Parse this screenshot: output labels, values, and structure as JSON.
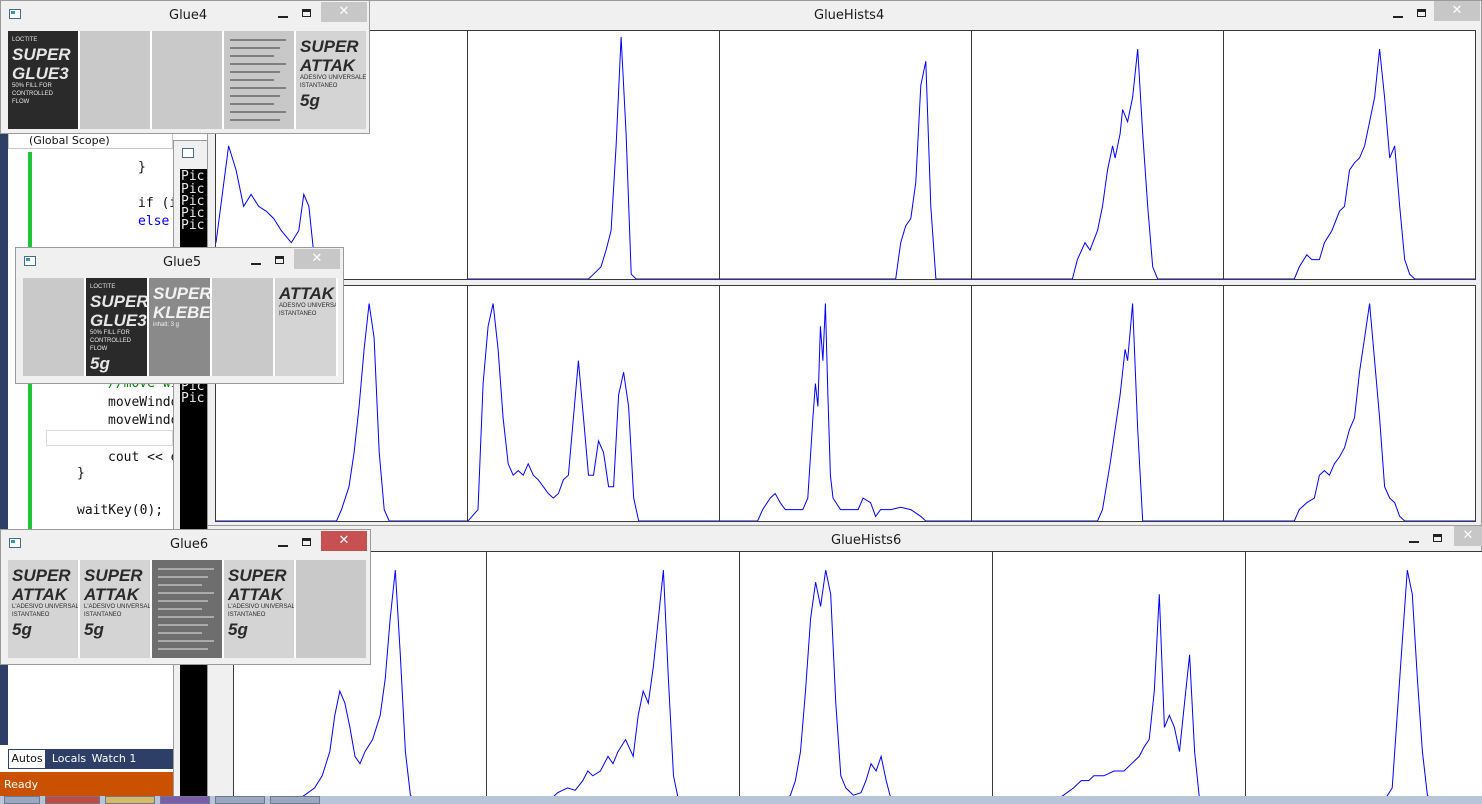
{
  "ide": {
    "scope_label": "(Global Scope)",
    "code_lines": [
      "}",
      "if (i",
      "else",
      "//move wi",
      "moveWindo",
      "moveWindo",
      "cout << e",
      "}",
      "waitKey(0);"
    ],
    "console_lines": [
      "Pic",
      "Pic",
      "Pic",
      "Pic",
      "Pic",
      "Pic",
      "Pic"
    ],
    "tabs": {
      "autos": "Autos",
      "locals": "Locals",
      "watch": "Watch 1"
    },
    "status": "Ready",
    "colors": {
      "status_bar": "#ca5100",
      "debug_tab_bg": "#2d3f66",
      "change_margin": "#1fc43b"
    }
  },
  "windows": {
    "glue4": {
      "title": "Glue4",
      "minimize_icon": "minimize-icon",
      "maximize_icon": "maximize-icon",
      "close_label": "✕"
    },
    "glue5": {
      "title": "Glue5",
      "close_label": "✕"
    },
    "glue6": {
      "title": "Glue6",
      "close_label": "✕"
    },
    "gluehists4": {
      "title": "GlueHists4",
      "close_label": "✕"
    },
    "gluehists6": {
      "title": "GlueHists6",
      "close_label": "✕"
    }
  },
  "thumbnails": {
    "glue4": [
      {
        "lines": [
          "LOCTITE",
          "SUPER",
          "GLUE3",
          "50% FILL FOR",
          "CONTROLLED",
          "FLOW"
        ],
        "style": "dark-label"
      },
      {
        "lines": [],
        "style": "blank"
      },
      {
        "lines": [],
        "style": "blank"
      },
      {
        "lines": [],
        "style": "text-page"
      },
      {
        "lines": [
          "SUPER",
          "ATTAK",
          "ADESIVO UNIVERSALE",
          "ISTANTANEO",
          "5g"
        ],
        "style": "light-label"
      }
    ],
    "glue5": [
      {
        "lines": [],
        "style": "blank"
      },
      {
        "lines": [
          "LOCTITE",
          "SUPER",
          "GLUE3",
          "50% FILL FOR",
          "CONTROLLED",
          "FLOW",
          "5g"
        ],
        "style": "dark-label"
      },
      {
        "lines": [
          "SUPER",
          "KLEBER",
          "inhalt: 3 g"
        ],
        "style": "gray-label"
      },
      {
        "lines": [],
        "style": "blank"
      },
      {
        "lines": [
          "ATTAK",
          "ADESIVO UNIVERSALE",
          "ISTANTANEO"
        ],
        "style": "light-label"
      }
    ],
    "glue6": [
      {
        "lines": [
          "SUPER",
          "ATTAK",
          "L'ADESIVO UNIVERSALE",
          "ISTANTANEO",
          "5g"
        ],
        "style": "light-label"
      },
      {
        "lines": [
          "SUPER",
          "ATTAK",
          "L'ADESIVO UNIVERSALE",
          "ISTANTANEO",
          "5g"
        ],
        "style": "light-label"
      },
      {
        "lines": [],
        "style": "gray-text"
      },
      {
        "lines": [
          "SUPER",
          "ATTAK",
          "L'ADESIVO UNIVERSALE",
          "ISTANTANEO",
          "5g"
        ],
        "style": "light-label"
      },
      {
        "lines": [],
        "style": "blank"
      }
    ]
  },
  "histograms": {
    "line_color": "#0000ff",
    "bins": 100,
    "gluehists4_row1": [
      [
        [
          0,
          0.15
        ],
        [
          5,
          0.55
        ],
        [
          8,
          0.45
        ],
        [
          11,
          0.3
        ],
        [
          14,
          0.35
        ],
        [
          17,
          0.3
        ],
        [
          20,
          0.28
        ],
        [
          23,
          0.25
        ],
        [
          26,
          0.2
        ],
        [
          30,
          0.15
        ],
        [
          33,
          0.2
        ],
        [
          35,
          0.35
        ],
        [
          37,
          0.3
        ],
        [
          39,
          0.1
        ],
        [
          41,
          0.02
        ],
        [
          43,
          0
        ]
      ],
      [
        [
          0,
          0
        ],
        [
          48,
          0
        ],
        [
          50,
          0.02
        ],
        [
          53,
          0.05
        ],
        [
          55,
          0.12
        ],
        [
          57,
          0.2
        ],
        [
          59,
          0.55
        ],
        [
          61,
          1.0
        ],
        [
          63,
          0.6
        ],
        [
          65,
          0.02
        ],
        [
          67,
          0
        ],
        [
          100,
          0
        ]
      ],
      [
        [
          0,
          0
        ],
        [
          70,
          0
        ],
        [
          72,
          0.15
        ],
        [
          74,
          0.22
        ],
        [
          76,
          0.25
        ],
        [
          78,
          0.4
        ],
        [
          80,
          0.8
        ],
        [
          82,
          0.9
        ],
        [
          84,
          0.3
        ],
        [
          86,
          0
        ],
        [
          100,
          0
        ]
      ],
      [
        [
          0,
          0
        ],
        [
          40,
          0
        ],
        [
          42,
          0.08
        ],
        [
          45,
          0.15
        ],
        [
          47,
          0.12
        ],
        [
          50,
          0.2
        ],
        [
          52,
          0.3
        ],
        [
          54,
          0.45
        ],
        [
          56,
          0.55
        ],
        [
          57,
          0.5
        ],
        [
          59,
          0.6
        ],
        [
          60,
          0.7
        ],
        [
          62,
          0.65
        ],
        [
          64,
          0.75
        ],
        [
          66,
          0.95
        ],
        [
          68,
          0.6
        ],
        [
          70,
          0.3
        ],
        [
          72,
          0.05
        ],
        [
          74,
          0
        ],
        [
          100,
          0
        ]
      ],
      [
        [
          0,
          0
        ],
        [
          28,
          0
        ],
        [
          30,
          0.05
        ],
        [
          33,
          0.1
        ],
        [
          35,
          0.08
        ],
        [
          38,
          0.08
        ],
        [
          40,
          0.15
        ],
        [
          43,
          0.2
        ],
        [
          46,
          0.28
        ],
        [
          48,
          0.3
        ],
        [
          50,
          0.45
        ],
        [
          52,
          0.48
        ],
        [
          54,
          0.5
        ],
        [
          56,
          0.55
        ],
        [
          58,
          0.65
        ],
        [
          60,
          0.75
        ],
        [
          62,
          0.95
        ],
        [
          64,
          0.75
        ],
        [
          66,
          0.5
        ],
        [
          68,
          0.55
        ],
        [
          70,
          0.3
        ],
        [
          72,
          0.08
        ],
        [
          74,
          0.02
        ],
        [
          76,
          0
        ],
        [
          100,
          0
        ]
      ]
    ],
    "gluehists4_row2": [
      [
        [
          0,
          0
        ],
        [
          48,
          0
        ],
        [
          50,
          0.05
        ],
        [
          53,
          0.15
        ],
        [
          55,
          0.3
        ],
        [
          57,
          0.5
        ],
        [
          59,
          0.75
        ],
        [
          61,
          0.95
        ],
        [
          63,
          0.8
        ],
        [
          65,
          0.3
        ],
        [
          67,
          0.05
        ],
        [
          69,
          0
        ],
        [
          100,
          0
        ]
      ],
      [
        [
          0,
          0
        ],
        [
          4,
          0.05
        ],
        [
          6,
          0.6
        ],
        [
          8,
          0.85
        ],
        [
          10,
          0.95
        ],
        [
          12,
          0.75
        ],
        [
          14,
          0.45
        ],
        [
          16,
          0.25
        ],
        [
          18,
          0.2
        ],
        [
          20,
          0.22
        ],
        [
          22,
          0.2
        ],
        [
          24,
          0.25
        ],
        [
          26,
          0.2
        ],
        [
          28,
          0.18
        ],
        [
          30,
          0.15
        ],
        [
          32,
          0.12
        ],
        [
          34,
          0.1
        ],
        [
          36,
          0.12
        ],
        [
          38,
          0.18
        ],
        [
          40,
          0.2
        ],
        [
          44,
          0.7
        ],
        [
          46,
          0.45
        ],
        [
          48,
          0.2
        ],
        [
          50,
          0.2
        ],
        [
          52,
          0.35
        ],
        [
          54,
          0.3
        ],
        [
          56,
          0.15
        ],
        [
          58,
          0.15
        ],
        [
          60,
          0.55
        ],
        [
          62,
          0.65
        ],
        [
          64,
          0.5
        ],
        [
          66,
          0.1
        ],
        [
          68,
          0
        ],
        [
          100,
          0
        ]
      ],
      [
        [
          0,
          0
        ],
        [
          15,
          0
        ],
        [
          17,
          0.05
        ],
        [
          20,
          0.1
        ],
        [
          22,
          0.12
        ],
        [
          24,
          0.08
        ],
        [
          26,
          0.05
        ],
        [
          30,
          0.05
        ],
        [
          33,
          0.05
        ],
        [
          35,
          0.1
        ],
        [
          37,
          0.45
        ],
        [
          38,
          0.6
        ],
        [
          39,
          0.5
        ],
        [
          40,
          0.85
        ],
        [
          41,
          0.7
        ],
        [
          42,
          0.95
        ],
        [
          43,
          0.55
        ],
        [
          44,
          0.2
        ],
        [
          45,
          0.1
        ],
        [
          48,
          0.05
        ],
        [
          52,
          0.05
        ],
        [
          55,
          0.05
        ],
        [
          57,
          0.1
        ],
        [
          60,
          0.08
        ],
        [
          62,
          0.02
        ],
        [
          64,
          0.05
        ],
        [
          68,
          0.05
        ],
        [
          72,
          0.06
        ],
        [
          76,
          0.05
        ],
        [
          80,
          0.02
        ],
        [
          82,
          0
        ],
        [
          100,
          0
        ]
      ],
      [
        [
          0,
          0
        ],
        [
          50,
          0
        ],
        [
          52,
          0.05
        ],
        [
          55,
          0.25
        ],
        [
          57,
          0.4
        ],
        [
          59,
          0.55
        ],
        [
          61,
          0.75
        ],
        [
          62,
          0.7
        ],
        [
          64,
          0.95
        ],
        [
          66,
          0.4
        ],
        [
          68,
          0
        ],
        [
          100,
          0
        ]
      ],
      [
        [
          0,
          0
        ],
        [
          28,
          0
        ],
        [
          30,
          0.05
        ],
        [
          33,
          0.08
        ],
        [
          36,
          0.1
        ],
        [
          38,
          0.2
        ],
        [
          40,
          0.22
        ],
        [
          42,
          0.2
        ],
        [
          44,
          0.25
        ],
        [
          46,
          0.28
        ],
        [
          48,
          0.32
        ],
        [
          50,
          0.4
        ],
        [
          52,
          0.45
        ],
        [
          54,
          0.65
        ],
        [
          56,
          0.8
        ],
        [
          58,
          0.95
        ],
        [
          60,
          0.7
        ],
        [
          62,
          0.45
        ],
        [
          64,
          0.15
        ],
        [
          66,
          0.1
        ],
        [
          68,
          0.08
        ],
        [
          70,
          0.02
        ],
        [
          72,
          0
        ],
        [
          100,
          0
        ]
      ]
    ],
    "gluehists6_row": [
      [
        [
          0,
          0
        ],
        [
          25,
          0
        ],
        [
          28,
          0.02
        ],
        [
          32,
          0.05
        ],
        [
          35,
          0.1
        ],
        [
          38,
          0.2
        ],
        [
          40,
          0.35
        ],
        [
          42,
          0.45
        ],
        [
          44,
          0.4
        ],
        [
          46,
          0.3
        ],
        [
          48,
          0.18
        ],
        [
          50,
          0.15
        ],
        [
          52,
          0.2
        ],
        [
          55,
          0.25
        ],
        [
          58,
          0.35
        ],
        [
          60,
          0.5
        ],
        [
          62,
          0.75
        ],
        [
          64,
          0.95
        ],
        [
          66,
          0.6
        ],
        [
          68,
          0.2
        ],
        [
          70,
          0.02
        ],
        [
          72,
          0
        ],
        [
          100,
          0
        ]
      ],
      [
        [
          0,
          0
        ],
        [
          25,
          0
        ],
        [
          28,
          0.03
        ],
        [
          32,
          0.05
        ],
        [
          35,
          0.04
        ],
        [
          38,
          0.08
        ],
        [
          40,
          0.12
        ],
        [
          42,
          0.1
        ],
        [
          45,
          0.12
        ],
        [
          48,
          0.18
        ],
        [
          50,
          0.15
        ],
        [
          52,
          0.2
        ],
        [
          55,
          0.25
        ],
        [
          58,
          0.18
        ],
        [
          60,
          0.35
        ],
        [
          62,
          0.45
        ],
        [
          64,
          0.4
        ],
        [
          66,
          0.55
        ],
        [
          68,
          0.75
        ],
        [
          70,
          0.95
        ],
        [
          72,
          0.5
        ],
        [
          74,
          0.1
        ],
        [
          76,
          0
        ],
        [
          100,
          0
        ]
      ],
      [
        [
          0,
          0
        ],
        [
          18,
          0
        ],
        [
          20,
          0.02
        ],
        [
          22,
          0.08
        ],
        [
          24,
          0.2
        ],
        [
          26,
          0.45
        ],
        [
          28,
          0.75
        ],
        [
          30,
          0.9
        ],
        [
          32,
          0.8
        ],
        [
          34,
          0.95
        ],
        [
          36,
          0.85
        ],
        [
          38,
          0.4
        ],
        [
          40,
          0.1
        ],
        [
          42,
          0.05
        ],
        [
          45,
          0.02
        ],
        [
          48,
          0.03
        ],
        [
          50,
          0.08
        ],
        [
          52,
          0.15
        ],
        [
          54,
          0.12
        ],
        [
          56,
          0.18
        ],
        [
          58,
          0.08
        ],
        [
          60,
          0
        ],
        [
          100,
          0
        ]
      ],
      [
        [
          0,
          0
        ],
        [
          25,
          0
        ],
        [
          28,
          0.02
        ],
        [
          32,
          0.05
        ],
        [
          35,
          0.08
        ],
        [
          38,
          0.08
        ],
        [
          40,
          0.1
        ],
        [
          44,
          0.1
        ],
        [
          48,
          0.12
        ],
        [
          52,
          0.12
        ],
        [
          55,
          0.15
        ],
        [
          58,
          0.18
        ],
        [
          60,
          0.22
        ],
        [
          62,
          0.25
        ],
        [
          64,
          0.45
        ],
        [
          66,
          0.85
        ],
        [
          68,
          0.3
        ],
        [
          70,
          0.35
        ],
        [
          72,
          0.3
        ],
        [
          74,
          0.2
        ],
        [
          76,
          0.4
        ],
        [
          78,
          0.6
        ],
        [
          80,
          0.2
        ],
        [
          82,
          0
        ],
        [
          100,
          0
        ]
      ],
      [
        [
          0,
          0
        ],
        [
          55,
          0
        ],
        [
          58,
          0.05
        ],
        [
          60,
          0.35
        ],
        [
          62,
          0.65
        ],
        [
          64,
          0.95
        ],
        [
          66,
          0.85
        ],
        [
          68,
          0.5
        ],
        [
          70,
          0.2
        ],
        [
          72,
          0.02
        ],
        [
          74,
          0
        ],
        [
          100,
          0
        ]
      ]
    ]
  }
}
